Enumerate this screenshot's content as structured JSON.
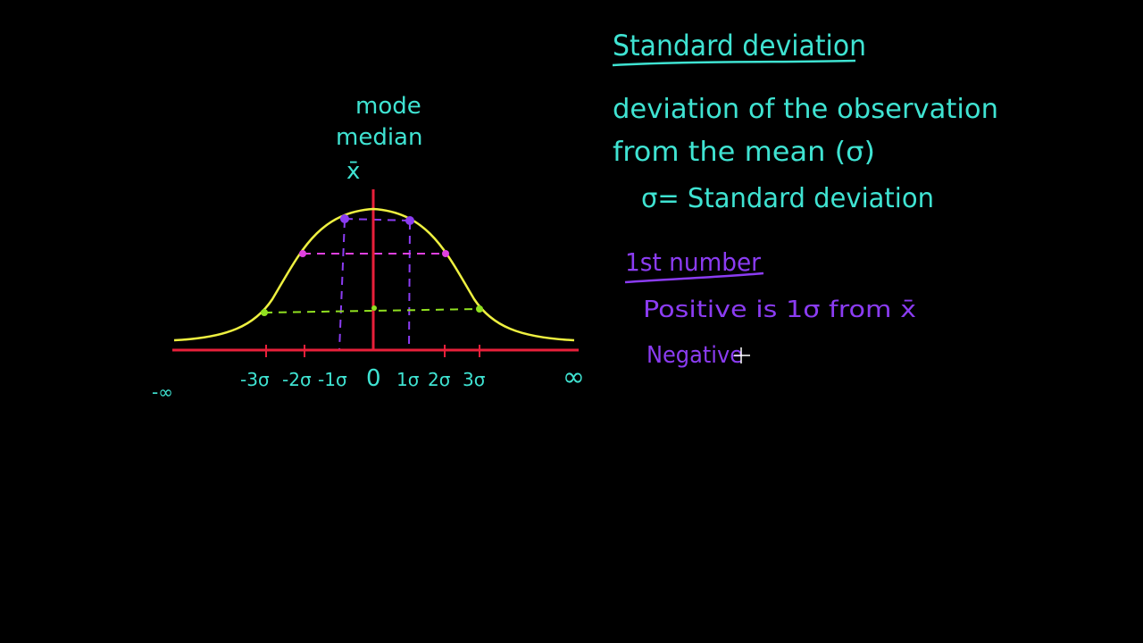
{
  "colors": {
    "background": "#000000",
    "text": "#3fe3d2",
    "curve": "#eef040",
    "axis": "#e8203a",
    "one_sigma": "#8b3cf2",
    "two_sigma": "#e040e0",
    "three_sigma": "#90e020",
    "note": "#8b3cf2"
  },
  "diagram": {
    "center_labels": [
      "mode",
      "median",
      "x̄"
    ],
    "axis_labels": {
      "neg_inf": "-∞",
      "m3": "-3σ",
      "m2": "-2σ",
      "m1": "-1σ",
      "zero": "0",
      "p1": "1σ",
      "p2": "2σ",
      "p3": "3σ",
      "pos_inf": "∞"
    }
  },
  "notes": {
    "title": "Standard deviation",
    "line1": "deviation of the observation",
    "line2": "from the mean (σ)",
    "line3": "σ= Standard deviation",
    "subheading": "1st number",
    "positive": "Positive is 1σ from x̄",
    "negative": "Negative"
  }
}
